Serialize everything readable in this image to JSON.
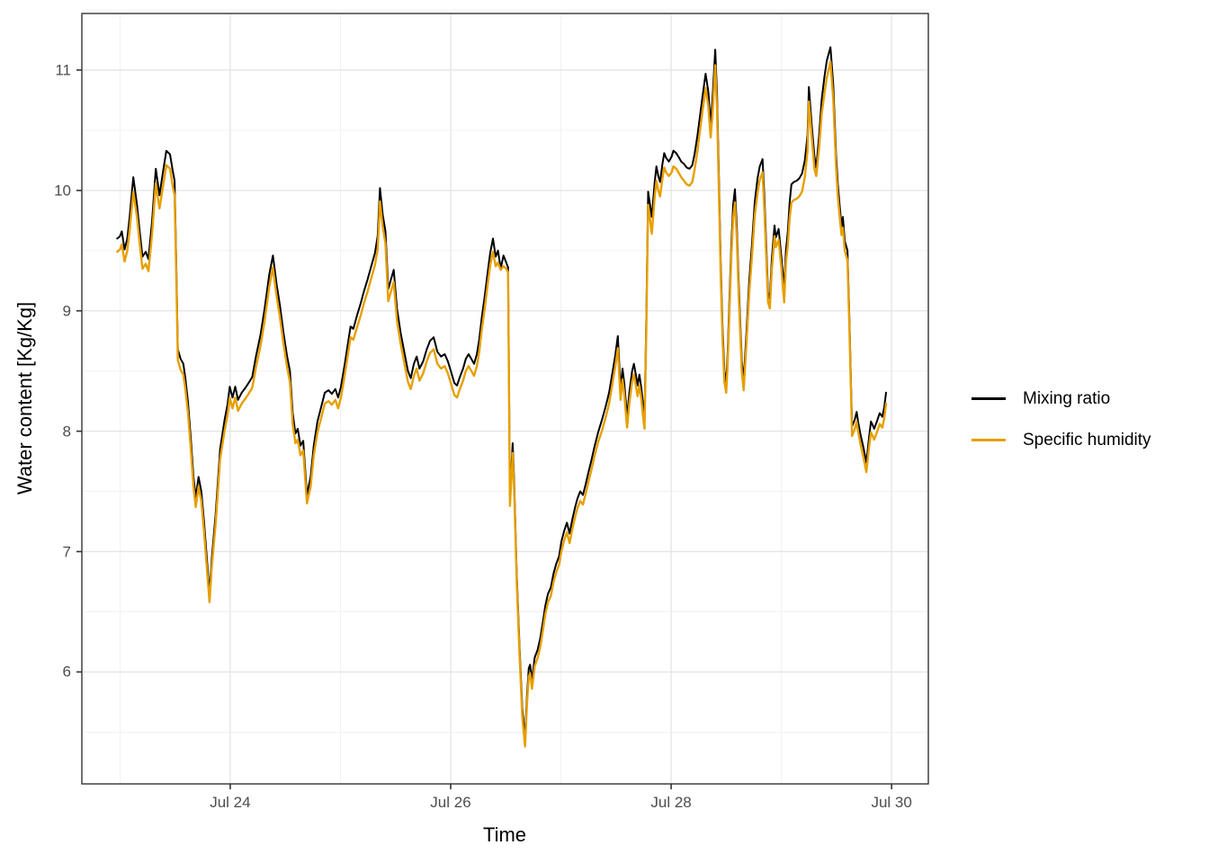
{
  "figure": {
    "x_axis_title": "Time",
    "y_axis_title": "Water content [Kg/Kg]"
  },
  "legend": {
    "items": [
      {
        "label": "Mixing ratio",
        "color": "#000000"
      },
      {
        "label": "Specific humidity",
        "color": "#E69F00"
      }
    ]
  },
  "chart_data": {
    "type": "line",
    "title": "",
    "xlabel": "Time",
    "ylabel": "Water content [Kg/Kg]",
    "x_unit": "hours since Jul 23 00:00",
    "xlim": [
      -8.3,
      176.0
    ],
    "ylim": [
      5.07,
      11.47
    ],
    "grid": true,
    "legend_position": "right",
    "x_ticks": [
      {
        "t": 24,
        "label": "Jul 24"
      },
      {
        "t": 72,
        "label": "Jul 26"
      },
      {
        "t": 120,
        "label": "Jul 28"
      },
      {
        "t": 168,
        "label": "Jul 30"
      }
    ],
    "x_minor": [
      0,
      48,
      96,
      144
    ],
    "y_ticks": [
      6,
      7,
      8,
      9,
      10,
      11
    ],
    "y_minor": [
      5.5,
      6.5,
      7.5,
      8.5,
      9.5,
      10.5,
      11.5
    ],
    "series_meta": [
      {
        "name": "Mixing ratio",
        "color": "#000000",
        "width": 2.0
      },
      {
        "name": "Specific humidity",
        "color": "#E69F00",
        "width": 2.4
      }
    ],
    "points_format": [
      "t_hours",
      "mixing_ratio",
      "specific_humidity"
    ],
    "points": [
      [
        -0.6,
        9.6,
        9.49
      ],
      [
        0,
        9.62,
        9.51
      ],
      [
        0.4,
        9.66,
        9.55
      ],
      [
        1,
        9.51,
        9.41
      ],
      [
        1.6,
        9.6,
        9.5
      ],
      [
        2.1,
        9.78,
        9.67
      ],
      [
        2.9,
        10.11,
        9.99
      ],
      [
        3.7,
        9.88,
        9.78
      ],
      [
        4.3,
        9.66,
        9.56
      ],
      [
        4.9,
        9.45,
        9.35
      ],
      [
        5.6,
        9.49,
        9.39
      ],
      [
        6.2,
        9.43,
        9.33
      ],
      [
        7,
        9.75,
        9.64
      ],
      [
        7.8,
        10.18,
        10.06
      ],
      [
        8.6,
        9.96,
        9.85
      ],
      [
        9.3,
        10.14,
        10.02
      ],
      [
        10.1,
        10.33,
        10.21
      ],
      [
        10.9,
        10.3,
        10.18
      ],
      [
        11.5,
        10.16,
        10.03
      ],
      [
        11.9,
        10.08,
        9.96
      ],
      [
        12.3,
        9.3,
        9.2
      ],
      [
        12.6,
        8.68,
        8.59
      ],
      [
        13.2,
        8.6,
        8.51
      ],
      [
        13.8,
        8.56,
        8.47
      ],
      [
        14.2,
        8.45,
        8.36
      ],
      [
        14.8,
        8.25,
        8.16
      ],
      [
        15.4,
        7.95,
        7.86
      ],
      [
        16,
        7.62,
        7.54
      ],
      [
        16.5,
        7.45,
        7.37
      ],
      [
        17.1,
        7.62,
        7.54
      ],
      [
        17.7,
        7.5,
        7.42
      ],
      [
        18.3,
        7.25,
        7.17
      ],
      [
        18.9,
        6.95,
        6.87
      ],
      [
        19.5,
        6.65,
        6.58
      ],
      [
        20,
        6.95,
        6.88
      ],
      [
        20.8,
        7.3,
        7.22
      ],
      [
        21.8,
        7.85,
        7.77
      ],
      [
        22.8,
        8.1,
        8.01
      ],
      [
        23.4,
        8.22,
        8.13
      ],
      [
        23.9,
        8.37,
        8.28
      ],
      [
        24.5,
        8.28,
        8.19
      ],
      [
        25.1,
        8.37,
        8.28
      ],
      [
        25.7,
        8.26,
        8.17
      ],
      [
        26.5,
        8.32,
        8.23
      ],
      [
        27.3,
        8.36,
        8.27
      ],
      [
        28,
        8.4,
        8.31
      ],
      [
        28.8,
        8.45,
        8.36
      ],
      [
        29.6,
        8.62,
        8.53
      ],
      [
        30.6,
        8.8,
        8.71
      ],
      [
        31.5,
        9.02,
        8.92
      ],
      [
        32.5,
        9.3,
        9.2
      ],
      [
        33.3,
        9.46,
        9.36
      ],
      [
        34.1,
        9.22,
        9.12
      ],
      [
        34.8,
        9.05,
        8.95
      ],
      [
        35.6,
        8.82,
        8.73
      ],
      [
        36.4,
        8.62,
        8.53
      ],
      [
        37,
        8.5,
        8.41
      ],
      [
        37.6,
        8.15,
        8.06
      ],
      [
        38.2,
        7.98,
        7.9
      ],
      [
        38.7,
        8.02,
        7.93
      ],
      [
        39.3,
        7.88,
        7.8
      ],
      [
        39.9,
        7.92,
        7.84
      ],
      [
        40.7,
        7.47,
        7.4
      ],
      [
        41.5,
        7.62,
        7.54
      ],
      [
        42.2,
        7.88,
        7.8
      ],
      [
        43,
        8.08,
        7.99
      ],
      [
        43.8,
        8.2,
        8.11
      ],
      [
        44.6,
        8.32,
        8.23
      ],
      [
        45.4,
        8.34,
        8.25
      ],
      [
        46.1,
        8.31,
        8.22
      ],
      [
        46.9,
        8.35,
        8.26
      ],
      [
        47.5,
        8.28,
        8.19
      ],
      [
        48.1,
        8.37,
        8.28
      ],
      [
        48.9,
        8.55,
        8.46
      ],
      [
        49.6,
        8.72,
        8.63
      ],
      [
        50.2,
        8.87,
        8.78
      ],
      [
        50.8,
        8.85,
        8.76
      ],
      [
        51.6,
        8.96,
        8.86
      ],
      [
        52.4,
        9.06,
        8.96
      ],
      [
        53.1,
        9.16,
        9.06
      ],
      [
        53.9,
        9.26,
        9.16
      ],
      [
        54.7,
        9.37,
        9.27
      ],
      [
        55.5,
        9.48,
        9.38
      ],
      [
        56.1,
        9.62,
        9.51
      ],
      [
        56.6,
        10.02,
        9.91
      ],
      [
        57.2,
        9.8,
        9.7
      ],
      [
        57.8,
        9.66,
        9.56
      ],
      [
        58.4,
        9.18,
        9.08
      ],
      [
        59,
        9.26,
        9.16
      ],
      [
        59.6,
        9.34,
        9.24
      ],
      [
        60.3,
        9.02,
        8.92
      ],
      [
        61.1,
        8.82,
        8.73
      ],
      [
        61.9,
        8.66,
        8.57
      ],
      [
        62.7,
        8.5,
        8.41
      ],
      [
        63.3,
        8.44,
        8.35
      ],
      [
        64,
        8.56,
        8.46
      ],
      [
        64.6,
        8.62,
        8.52
      ],
      [
        65.2,
        8.52,
        8.42
      ],
      [
        66,
        8.58,
        8.48
      ],
      [
        66.8,
        8.68,
        8.58
      ],
      [
        67.5,
        8.75,
        8.65
      ],
      [
        68.3,
        8.78,
        8.68
      ],
      [
        69.1,
        8.66,
        8.56
      ],
      [
        69.9,
        8.62,
        8.52
      ],
      [
        70.7,
        8.64,
        8.54
      ],
      [
        71.4,
        8.58,
        8.48
      ],
      [
        72.2,
        8.48,
        8.38
      ],
      [
        72.8,
        8.4,
        8.3
      ],
      [
        73.4,
        8.38,
        8.28
      ],
      [
        74,
        8.45,
        8.35
      ],
      [
        74.7,
        8.52,
        8.42
      ],
      [
        75.3,
        8.6,
        8.5
      ],
      [
        75.9,
        8.64,
        8.54
      ],
      [
        76.5,
        8.6,
        8.5
      ],
      [
        77.1,
        8.56,
        8.46
      ],
      [
        77.7,
        8.64,
        8.54
      ],
      [
        78.2,
        8.76,
        8.66
      ],
      [
        78.8,
        8.95,
        8.85
      ],
      [
        79.4,
        9.12,
        9.02
      ],
      [
        80,
        9.3,
        9.2
      ],
      [
        80.6,
        9.48,
        9.38
      ],
      [
        81.2,
        9.6,
        9.49
      ],
      [
        81.8,
        9.45,
        9.37
      ],
      [
        82.3,
        9.5,
        9.4
      ],
      [
        82.9,
        9.35,
        9.34
      ],
      [
        83.5,
        9.46,
        9.37
      ],
      [
        84.1,
        9.4,
        9.35
      ],
      [
        84.5,
        9.36,
        9.32
      ],
      [
        84.9,
        7.45,
        7.38
      ],
      [
        85.5,
        7.9,
        7.82
      ],
      [
        85.8,
        7.6,
        7.52
      ],
      [
        86.4,
        6.8,
        6.73
      ],
      [
        87,
        6.2,
        6.13
      ],
      [
        87.6,
        5.7,
        5.63
      ],
      [
        88.2,
        5.45,
        5.38
      ],
      [
        88.6,
        5.8,
        5.73
      ],
      [
        89,
        6.03,
        5.96
      ],
      [
        89.3,
        6.06,
        5.99
      ],
      [
        89.7,
        5.93,
        5.86
      ],
      [
        90.3,
        6.12,
        6.05
      ],
      [
        90.9,
        6.18,
        6.11
      ],
      [
        91.5,
        6.28,
        6.21
      ],
      [
        92.1,
        6.42,
        6.35
      ],
      [
        92.6,
        6.55,
        6.48
      ],
      [
        93.2,
        6.65,
        6.58
      ],
      [
        93.8,
        6.7,
        6.63
      ],
      [
        94.4,
        6.82,
        6.75
      ],
      [
        95,
        6.9,
        6.83
      ],
      [
        95.6,
        6.96,
        6.89
      ],
      [
        96.1,
        7.08,
        7.0
      ],
      [
        96.7,
        7.17,
        7.09
      ],
      [
        97.3,
        7.24,
        7.16
      ],
      [
        97.9,
        7.15,
        7.07
      ],
      [
        98.5,
        7.27,
        7.19
      ],
      [
        99.1,
        7.37,
        7.29
      ],
      [
        99.6,
        7.44,
        7.36
      ],
      [
        100.2,
        7.5,
        7.42
      ],
      [
        100.8,
        7.47,
        7.39
      ],
      [
        101.4,
        7.56,
        7.48
      ],
      [
        102,
        7.66,
        7.58
      ],
      [
        102.6,
        7.75,
        7.67
      ],
      [
        103.3,
        7.87,
        7.79
      ],
      [
        104.1,
        7.99,
        7.91
      ],
      [
        104.9,
        8.09,
        8.0
      ],
      [
        105.7,
        8.2,
        8.11
      ],
      [
        106.5,
        8.32,
        8.23
      ],
      [
        107.2,
        8.48,
        8.39
      ],
      [
        107.8,
        8.62,
        8.53
      ],
      [
        108.4,
        8.79,
        8.69
      ],
      [
        109,
        8.35,
        8.26
      ],
      [
        109.4,
        8.52,
        8.43
      ],
      [
        109.8,
        8.4,
        8.31
      ],
      [
        110.4,
        8.12,
        8.03
      ],
      [
        110.9,
        8.32,
        8.23
      ],
      [
        111.5,
        8.5,
        8.41
      ],
      [
        111.9,
        8.56,
        8.47
      ],
      [
        112.3,
        8.47,
        8.38
      ],
      [
        112.7,
        8.38,
        8.29
      ],
      [
        113.1,
        8.47,
        8.38
      ],
      [
        113.5,
        8.36,
        8.27
      ],
      [
        113.9,
        8.22,
        8.12
      ],
      [
        114.2,
        8.12,
        8.02
      ],
      [
        114.6,
        8.95,
        8.85
      ],
      [
        115,
        9.99,
        9.88
      ],
      [
        115.4,
        9.88,
        9.76
      ],
      [
        115.8,
        9.78,
        9.64
      ],
      [
        116.4,
        10.06,
        9.94
      ],
      [
        116.8,
        10.2,
        10.08
      ],
      [
        117.2,
        10.12,
        10.0
      ],
      [
        117.6,
        10.07,
        9.95
      ],
      [
        118.1,
        10.22,
        10.1
      ],
      [
        118.5,
        10.31,
        10.19
      ],
      [
        118.9,
        10.27,
        10.15
      ],
      [
        119.5,
        10.24,
        10.12
      ],
      [
        120.1,
        10.28,
        10.15
      ],
      [
        120.5,
        10.33,
        10.2
      ],
      [
        121.1,
        10.31,
        10.18
      ],
      [
        121.6,
        10.28,
        10.15
      ],
      [
        122.2,
        10.24,
        10.11
      ],
      [
        122.8,
        10.22,
        10.08
      ],
      [
        123.4,
        10.19,
        10.05
      ],
      [
        124,
        10.18,
        10.04
      ],
      [
        124.6,
        10.21,
        10.07
      ],
      [
        125.1,
        10.3,
        10.17
      ],
      [
        125.7,
        10.45,
        10.32
      ],
      [
        126.3,
        10.62,
        10.5
      ],
      [
        126.9,
        10.8,
        10.68
      ],
      [
        127.5,
        10.97,
        10.85
      ],
      [
        128.1,
        10.82,
        10.7
      ],
      [
        128.6,
        10.55,
        10.44
      ],
      [
        129,
        10.75,
        10.62
      ],
      [
        129.6,
        11.17,
        11.04
      ],
      [
        130,
        10.8,
        10.67
      ],
      [
        130.4,
        10.1,
        9.98
      ],
      [
        130.8,
        9.4,
        9.29
      ],
      [
        131.2,
        8.85,
        8.75
      ],
      [
        131.6,
        8.5,
        8.41
      ],
      [
        132,
        8.4,
        8.32
      ],
      [
        132.3,
        8.65,
        8.56
      ],
      [
        132.7,
        9.1,
        9.0
      ],
      [
        133.1,
        9.55,
        9.45
      ],
      [
        133.5,
        9.88,
        9.77
      ],
      [
        133.9,
        10.01,
        9.9
      ],
      [
        134.3,
        9.7,
        9.6
      ],
      [
        134.7,
        9.25,
        9.15
      ],
      [
        135.1,
        8.85,
        8.76
      ],
      [
        135.4,
        8.58,
        8.49
      ],
      [
        135.8,
        8.42,
        8.34
      ],
      [
        136.4,
        8.82,
        8.73
      ],
      [
        137,
        9.25,
        9.15
      ],
      [
        137.6,
        9.55,
        9.45
      ],
      [
        138.2,
        9.9,
        9.79
      ],
      [
        138.8,
        10.1,
        9.98
      ],
      [
        139.3,
        10.2,
        10.09
      ],
      [
        139.9,
        10.26,
        10.15
      ],
      [
        140.3,
        9.95,
        9.84
      ],
      [
        140.7,
        9.55,
        9.45
      ],
      [
        141.1,
        9.15,
        9.07
      ],
      [
        141.5,
        9.1,
        9.02
      ],
      [
        141.9,
        9.42,
        9.33
      ],
      [
        142.5,
        9.71,
        9.62
      ],
      [
        142.8,
        9.61,
        9.53
      ],
      [
        143.4,
        9.68,
        9.59
      ],
      [
        144,
        9.45,
        9.36
      ],
      [
        144.6,
        9.19,
        9.07
      ],
      [
        145,
        9.5,
        9.4
      ],
      [
        145.4,
        9.66,
        9.55
      ],
      [
        145.8,
        9.9,
        9.77
      ],
      [
        146.2,
        10.05,
        9.9
      ],
      [
        146.7,
        10.07,
        9.92
      ],
      [
        147.3,
        10.08,
        9.93
      ],
      [
        147.9,
        10.1,
        9.95
      ],
      [
        148.5,
        10.14,
        9.99
      ],
      [
        149.1,
        10.25,
        10.11
      ],
      [
        149.7,
        10.46,
        10.33
      ],
      [
        150,
        10.86,
        10.74
      ],
      [
        150.6,
        10.55,
        10.45
      ],
      [
        151.2,
        10.28,
        10.18
      ],
      [
        151.6,
        10.19,
        10.12
      ],
      [
        152.2,
        10.45,
        10.35
      ],
      [
        152.8,
        10.76,
        10.64
      ],
      [
        153.4,
        10.95,
        10.81
      ],
      [
        153.9,
        11.08,
        10.94
      ],
      [
        154.7,
        11.19,
        11.07
      ],
      [
        155.3,
        10.88,
        10.76
      ],
      [
        155.9,
        10.3,
        10.2
      ],
      [
        156.3,
        10.05,
        9.95
      ],
      [
        156.7,
        9.87,
        9.78
      ],
      [
        157.1,
        9.7,
        9.63
      ],
      [
        157.4,
        9.78,
        9.69
      ],
      [
        157.8,
        9.58,
        9.5
      ],
      [
        158.4,
        9.5,
        9.42
      ],
      [
        158.8,
        8.95,
        8.87
      ],
      [
        159.4,
        8.04,
        7.96
      ],
      [
        160,
        8.1,
        8.02
      ],
      [
        160.4,
        8.16,
        8.08
      ],
      [
        160.7,
        8.08,
        8.0
      ],
      [
        161.3,
        7.96,
        7.88
      ],
      [
        161.9,
        7.86,
        7.78
      ],
      [
        162.5,
        7.74,
        7.66
      ],
      [
        163.1,
        7.95,
        7.87
      ],
      [
        163.5,
        8.08,
        7.99
      ],
      [
        163.9,
        8.05,
        7.96
      ],
      [
        164.2,
        8.02,
        7.93
      ],
      [
        164.8,
        8.08,
        7.99
      ],
      [
        165.4,
        8.15,
        8.06
      ],
      [
        166,
        8.12,
        8.03
      ],
      [
        166.4,
        8.2,
        8.11
      ],
      [
        166.8,
        8.32,
        8.23
      ]
    ]
  }
}
